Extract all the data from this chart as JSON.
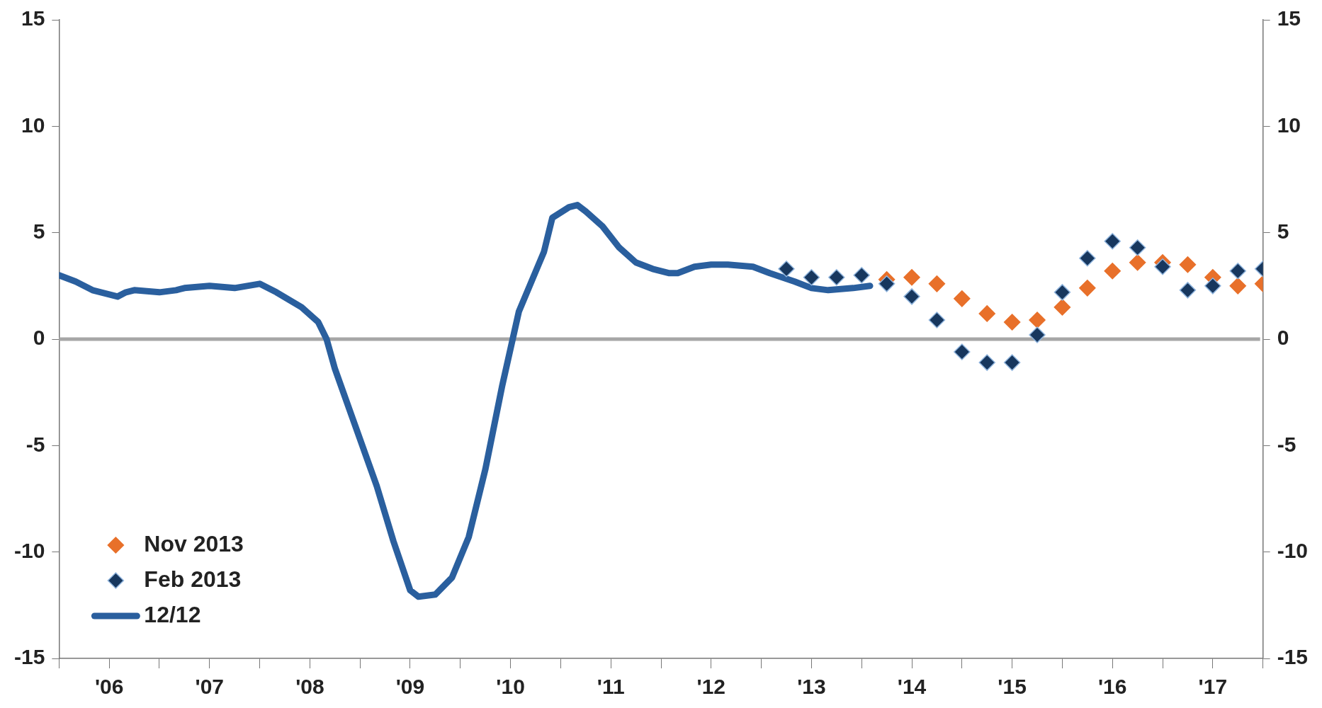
{
  "chart_data": {
    "type": "line",
    "xlim": [
      "2006",
      "2018"
    ],
    "xticks": [
      {
        "value": "2006",
        "label": null
      },
      {
        "value": "2006-07",
        "label": "'06"
      },
      {
        "value": "2007",
        "label": null
      },
      {
        "value": "2007-07",
        "label": "'07"
      },
      {
        "value": "2008",
        "label": null
      },
      {
        "value": "2008-07",
        "label": "'08"
      },
      {
        "value": "2009",
        "label": null
      },
      {
        "value": "2009-07",
        "label": "'09"
      },
      {
        "value": "2010",
        "label": null
      },
      {
        "value": "2010-07",
        "label": "'10"
      },
      {
        "value": "2011",
        "label": null
      },
      {
        "value": "2011-07",
        "label": "'11"
      },
      {
        "value": "2012",
        "label": null
      },
      {
        "value": "2012-07",
        "label": "'12"
      },
      {
        "value": "2013",
        "label": null
      },
      {
        "value": "2013-07",
        "label": "'13"
      },
      {
        "value": "2014",
        "label": null
      },
      {
        "value": "2014-07",
        "label": "'14"
      },
      {
        "value": "2015",
        "label": null
      },
      {
        "value": "2015-07",
        "label": "'15"
      },
      {
        "value": "2016",
        "label": null
      },
      {
        "value": "2016-07",
        "label": "'16"
      },
      {
        "value": "2017",
        "label": null
      },
      {
        "value": "2017-07",
        "label": "'17"
      },
      {
        "value": "2018",
        "label": null
      }
    ],
    "ylim": [
      -15,
      15
    ],
    "yticks": [
      -15,
      -10,
      -5,
      0,
      5,
      10,
      15
    ],
    "y2lim": [
      -15,
      15
    ],
    "y2ticks": [
      -15,
      -10,
      -5,
      0,
      5,
      10,
      15
    ],
    "grid": false,
    "legend": "bottom left",
    "ref_lines": [
      {
        "axis": "y",
        "value": 0,
        "color": "#a6a6a6"
      }
    ],
    "series": [
      {
        "name": "Nov 2013",
        "type": "scatter",
        "marker": "diamond",
        "color": "#e8702a",
        "x": [
          "2014-04",
          "2014-07",
          "2014-10",
          "2015-01",
          "2015-04",
          "2015-07",
          "2015-10",
          "2016-01",
          "2016-04",
          "2016-07",
          "2016-10",
          "2017-01",
          "2017-04",
          "2017-07",
          "2017-10",
          "2018-01"
        ],
        "values": [
          2.8,
          2.9,
          2.6,
          1.9,
          1.2,
          0.8,
          0.9,
          1.5,
          2.4,
          3.2,
          3.6,
          3.6,
          3.5,
          2.9,
          2.5,
          2.6
        ]
      },
      {
        "name": "Feb 2013",
        "type": "scatter",
        "marker": "diamond",
        "color": "#17375e",
        "x": [
          "2013-04",
          "2013-07",
          "2013-10",
          "2014-01",
          "2014-04",
          "2014-07",
          "2014-10",
          "2015-01",
          "2015-04",
          "2015-07",
          "2015-10",
          "2016-01",
          "2016-04",
          "2016-07",
          "2016-10",
          "2017-01",
          "2017-04",
          "2017-07",
          "2017-10",
          "2018-01"
        ],
        "values": [
          3.3,
          2.9,
          2.9,
          3.0,
          2.6,
          2.0,
          0.9,
          -0.6,
          -1.1,
          -1.1,
          0.2,
          2.2,
          3.8,
          4.6,
          4.3,
          3.4,
          2.3,
          2.5,
          3.2,
          3.3
        ]
      },
      {
        "name": "12/12",
        "marker": "none",
        "color": "#2a5f9e",
        "x": [
          "2006-01",
          "2006-03",
          "2006-05",
          "2006-08",
          "2006-09",
          "2006-10",
          "2007-01",
          "2007-03",
          "2007-04",
          "2007-07",
          "2007-10",
          "2008-01",
          "2008-03",
          "2008-06",
          "2008-08",
          "2008-09",
          "2008-10",
          "2008-12",
          "2009-03",
          "2009-05",
          "2009-07",
          "2009-08",
          "2009-10",
          "2009-12",
          "2010-02",
          "2010-04",
          "2010-06",
          "2010-08",
          "2010-11",
          "2010-12",
          "2011-02",
          "2011-03",
          "2011-04",
          "2011-06",
          "2011-08",
          "2011-10",
          "2011-12",
          "2012-02",
          "2012-03",
          "2012-05",
          "2012-07",
          "2012-09",
          "2012-12",
          "2013-02",
          "2013-05",
          "2013-07",
          "2013-09",
          "2013-12",
          "2014-02"
        ],
        "values": [
          3.0,
          2.7,
          2.3,
          2.0,
          2.2,
          2.3,
          2.2,
          2.3,
          2.4,
          2.5,
          2.4,
          2.6,
          2.2,
          1.5,
          0.8,
          0,
          -1.4,
          -3.6,
          -6.9,
          -9.5,
          -11.8,
          -12.1,
          -12.0,
          -11.2,
          -9.3,
          -6.1,
          -2.2,
          1.3,
          4.1,
          5.7,
          6.2,
          6.3,
          6.0,
          5.3,
          4.3,
          3.6,
          3.3,
          3.1,
          3.1,
          3.4,
          3.5,
          3.5,
          3.4,
          3.1,
          2.7,
          2.4,
          2.3,
          2.4,
          2.5
        ]
      }
    ]
  }
}
